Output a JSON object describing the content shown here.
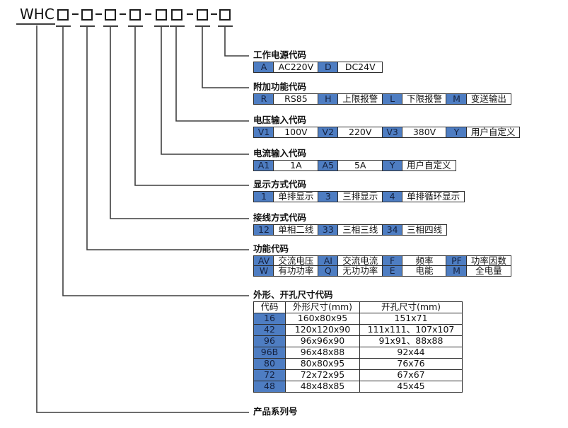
{
  "colors": {
    "code_cell_blue": "#4e7dc2",
    "code_text_navy": "#14213f",
    "line_dark": "#3f3f3f"
  },
  "model": {
    "prefix": "WHC",
    "segment_count": 8
  },
  "sections": [
    {
      "title": "工作电源代码",
      "rows": [
        [
          {
            "code": "A",
            "value": "AC220V"
          },
          {
            "code": "D",
            "value": "DC24V"
          }
        ]
      ]
    },
    {
      "title": "附加功能代码",
      "rows": [
        [
          {
            "code": "R",
            "value": "RS85"
          },
          {
            "code": "H",
            "value": "上限报警"
          },
          {
            "code": "L",
            "value": "下限报警"
          },
          {
            "code": "M",
            "value": "变送输出"
          }
        ]
      ]
    },
    {
      "title": "电压输入代码",
      "rows": [
        [
          {
            "code": "V1",
            "value": "100V"
          },
          {
            "code": "V2",
            "value": "220V"
          },
          {
            "code": "V3",
            "value": "380V"
          },
          {
            "code": "Y",
            "value": "用户自定义"
          }
        ]
      ]
    },
    {
      "title": "电流输入代码",
      "rows": [
        [
          {
            "code": "A1",
            "value": "1A"
          },
          {
            "code": "A5",
            "value": "5A"
          },
          {
            "code": "Y",
            "value": "用户自定义"
          }
        ]
      ]
    },
    {
      "title": "显示方式代码",
      "rows": [
        [
          {
            "code": "1",
            "value": "单排显示"
          },
          {
            "code": "3",
            "value": "三排显示"
          },
          {
            "code": "4",
            "value": "单排循环显示"
          }
        ]
      ]
    },
    {
      "title": "接线方式代码",
      "rows": [
        [
          {
            "code": "12",
            "value": "单相二线"
          },
          {
            "code": "33",
            "value": "三相三线"
          },
          {
            "code": "34",
            "value": "三相四线"
          }
        ]
      ]
    },
    {
      "title": "功能代码",
      "rows": [
        [
          {
            "code": "AV",
            "value": "交流电压"
          },
          {
            "code": "AI",
            "value": "交流电流"
          },
          {
            "code": "F",
            "value": "频率"
          },
          {
            "code": "PF",
            "value": "功率因数"
          }
        ],
        [
          {
            "code": "W",
            "value": "有功功率"
          },
          {
            "code": "Q",
            "value": "无功功率"
          },
          {
            "code": "E",
            "value": "电能"
          },
          {
            "code": "M",
            "value": "全电量"
          }
        ]
      ]
    },
    {
      "title": "外形、开孔尺寸代码",
      "table": {
        "headers": [
          "代码",
          "外形尺寸(mm)",
          "开孔尺寸(mm)"
        ],
        "rows": [
          [
            "16",
            "160x80x95",
            "151x71"
          ],
          [
            "42",
            "120x120x90",
            "111x111、107x107"
          ],
          [
            "96",
            "96x96x90",
            "91x91、88x88"
          ],
          [
            "96B",
            "96x48x88",
            "92x44"
          ],
          [
            "80",
            "80x80x95",
            "76x76"
          ],
          [
            "72",
            "72x72x95",
            "67x67"
          ],
          [
            "48",
            "48x48x85",
            "45x45"
          ]
        ]
      }
    },
    {
      "title": "产品系列号"
    }
  ]
}
